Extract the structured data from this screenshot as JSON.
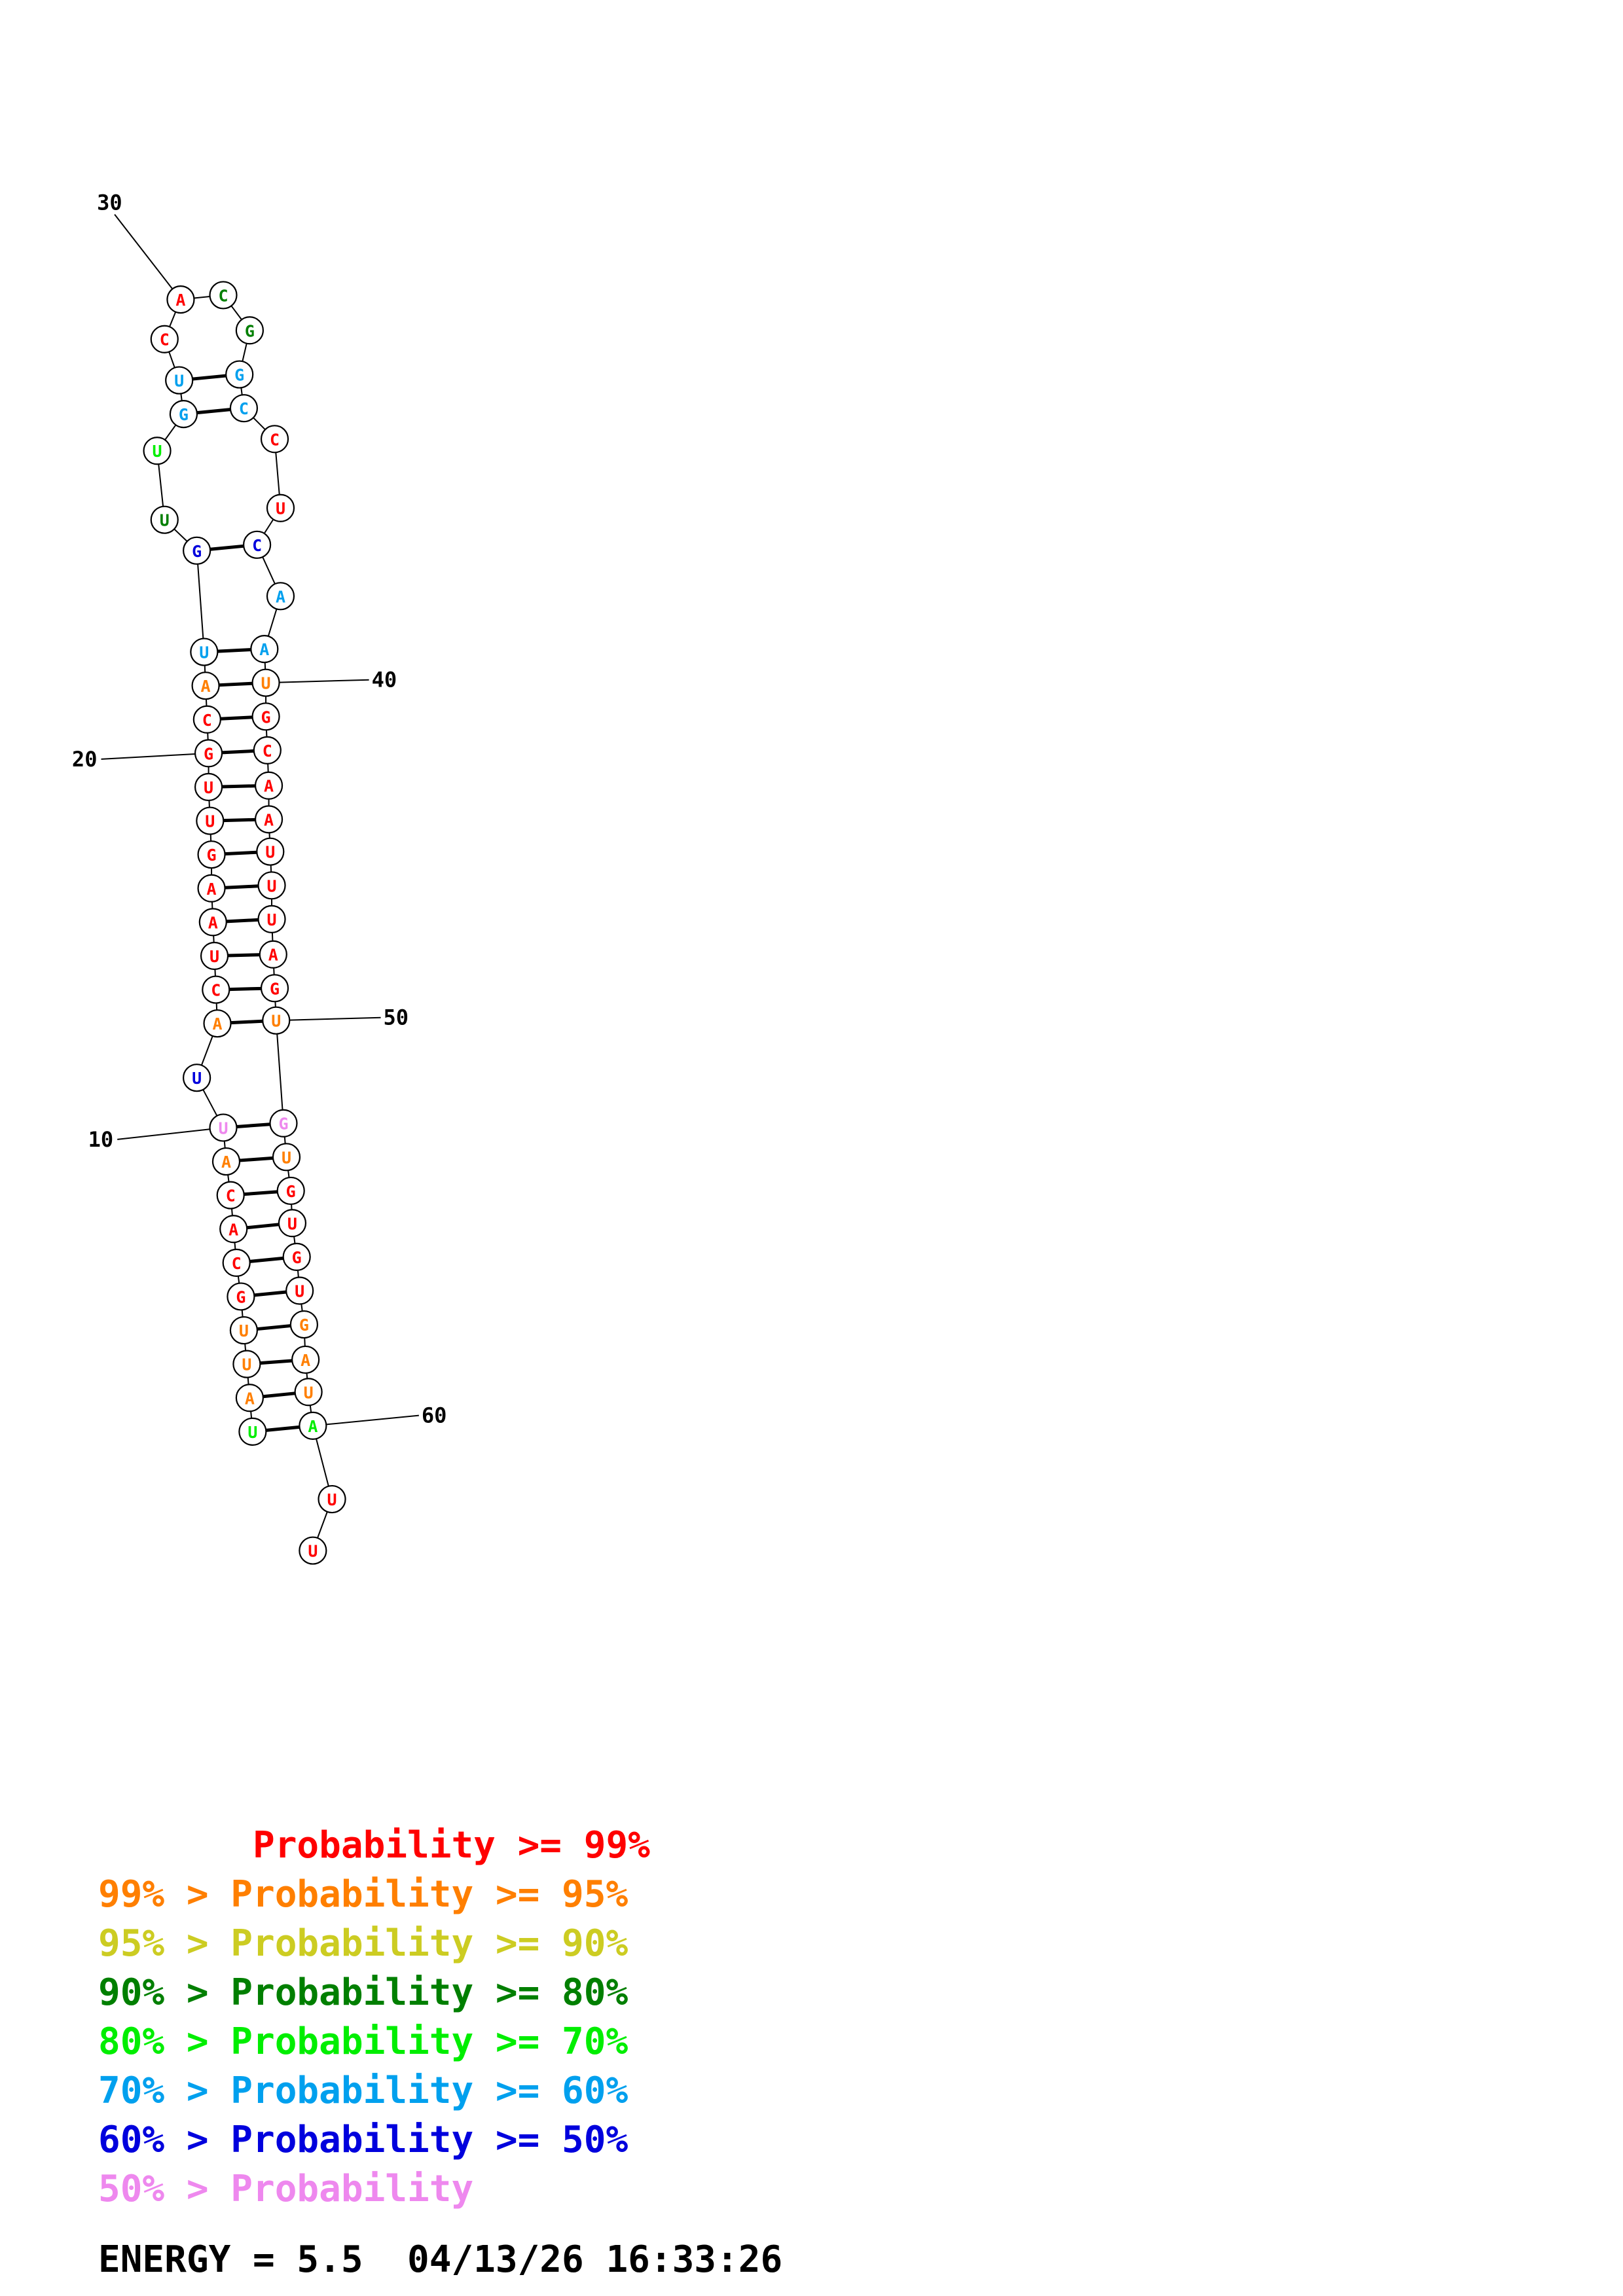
{
  "colors": {
    "r": "#ff0000",
    "o": "#ff7f00",
    "y": "#cccc22",
    "dg": "#007f00",
    "g": "#00ee00",
    "c": "#00a0ee",
    "b": "#0000dd",
    "p": "#ee88ee"
  },
  "nucleotides": [
    {
      "n": 1,
      "base": "U",
      "cls": "g"
    },
    {
      "n": 2,
      "base": "A",
      "cls": "o"
    },
    {
      "n": 3,
      "base": "U",
      "cls": "o"
    },
    {
      "n": 4,
      "base": "U",
      "cls": "o"
    },
    {
      "n": 5,
      "base": "G",
      "cls": "r"
    },
    {
      "n": 6,
      "base": "C",
      "cls": "r"
    },
    {
      "n": 7,
      "base": "A",
      "cls": "r"
    },
    {
      "n": 8,
      "base": "C",
      "cls": "r"
    },
    {
      "n": 9,
      "base": "A",
      "cls": "o"
    },
    {
      "n": 10,
      "base": "U",
      "cls": "p"
    },
    {
      "n": 11,
      "base": "U",
      "cls": "b"
    },
    {
      "n": 12,
      "base": "A",
      "cls": "o"
    },
    {
      "n": 13,
      "base": "C",
      "cls": "r"
    },
    {
      "n": 14,
      "base": "U",
      "cls": "r"
    },
    {
      "n": 15,
      "base": "A",
      "cls": "r"
    },
    {
      "n": 16,
      "base": "A",
      "cls": "r"
    },
    {
      "n": 17,
      "base": "G",
      "cls": "r"
    },
    {
      "n": 18,
      "base": "U",
      "cls": "r"
    },
    {
      "n": 19,
      "base": "U",
      "cls": "r"
    },
    {
      "n": 20,
      "base": "G",
      "cls": "r"
    },
    {
      "n": 21,
      "base": "C",
      "cls": "r"
    },
    {
      "n": 22,
      "base": "A",
      "cls": "o"
    },
    {
      "n": 23,
      "base": "U",
      "cls": "c"
    },
    {
      "n": 24,
      "base": "G",
      "cls": "b"
    },
    {
      "n": 25,
      "base": "U",
      "cls": "dg"
    },
    {
      "n": 26,
      "base": "U",
      "cls": "g"
    },
    {
      "n": 27,
      "base": "G",
      "cls": "c"
    },
    {
      "n": 28,
      "base": "U",
      "cls": "c"
    },
    {
      "n": 29,
      "base": "C",
      "cls": "r"
    },
    {
      "n": 30,
      "base": "A",
      "cls": "r"
    },
    {
      "n": 31,
      "base": "C",
      "cls": "dg"
    },
    {
      "n": 32,
      "base": "G",
      "cls": "dg"
    },
    {
      "n": 33,
      "base": "G",
      "cls": "c"
    },
    {
      "n": 34,
      "base": "C",
      "cls": "c"
    },
    {
      "n": 35,
      "base": "C",
      "cls": "r"
    },
    {
      "n": 36,
      "base": "U",
      "cls": "r"
    },
    {
      "n": 37,
      "base": "C",
      "cls": "b"
    },
    {
      "n": 38,
      "base": "A",
      "cls": "c"
    },
    {
      "n": 39,
      "base": "A",
      "cls": "c"
    },
    {
      "n": 40,
      "base": "U",
      "cls": "o"
    },
    {
      "n": 41,
      "base": "G",
      "cls": "r"
    },
    {
      "n": 42,
      "base": "C",
      "cls": "r"
    },
    {
      "n": 43,
      "base": "A",
      "cls": "r"
    },
    {
      "n": 44,
      "base": "A",
      "cls": "r"
    },
    {
      "n": 45,
      "base": "U",
      "cls": "r"
    },
    {
      "n": 46,
      "base": "U",
      "cls": "r"
    },
    {
      "n": 47,
      "base": "U",
      "cls": "r"
    },
    {
      "n": 48,
      "base": "A",
      "cls": "r"
    },
    {
      "n": 49,
      "base": "G",
      "cls": "r"
    },
    {
      "n": 50,
      "base": "U",
      "cls": "o"
    },
    {
      "n": 51,
      "base": "G",
      "cls": "p"
    },
    {
      "n": 52,
      "base": "U",
      "cls": "o"
    },
    {
      "n": 53,
      "base": "G",
      "cls": "r"
    },
    {
      "n": 54,
      "base": "U",
      "cls": "r"
    },
    {
      "n": 55,
      "base": "G",
      "cls": "r"
    },
    {
      "n": 56,
      "base": "U",
      "cls": "r"
    },
    {
      "n": 57,
      "base": "G",
      "cls": "o"
    },
    {
      "n": 58,
      "base": "A",
      "cls": "o"
    },
    {
      "n": 59,
      "base": "U",
      "cls": "o"
    },
    {
      "n": 60,
      "base": "A",
      "cls": "g"
    },
    {
      "n": 61,
      "base": "U",
      "cls": "r"
    },
    {
      "n": 62,
      "base": "U",
      "cls": "r"
    }
  ],
  "pairs": [
    [
      1,
      60
    ],
    [
      2,
      59
    ],
    [
      3,
      58
    ],
    [
      4,
      57
    ],
    [
      5,
      56
    ],
    [
      6,
      55
    ],
    [
      7,
      54
    ],
    [
      8,
      53
    ],
    [
      9,
      52
    ],
    [
      10,
      51
    ],
    [
      12,
      50
    ],
    [
      13,
      49
    ],
    [
      14,
      48
    ],
    [
      15,
      47
    ],
    [
      16,
      46
    ],
    [
      17,
      45
    ],
    [
      18,
      44
    ],
    [
      19,
      43
    ],
    [
      20,
      42
    ],
    [
      21,
      41
    ],
    [
      22,
      40
    ],
    [
      23,
      39
    ],
    [
      24,
      37
    ],
    [
      27,
      34
    ],
    [
      28,
      33
    ]
  ],
  "number_labels": [
    {
      "text": "10",
      "n": 10
    },
    {
      "text": "20",
      "n": 20
    },
    {
      "text": "30",
      "n": 30
    },
    {
      "text": "40",
      "n": 40
    },
    {
      "text": "50",
      "n": 50
    },
    {
      "text": "60",
      "n": 60
    }
  ],
  "legend": [
    {
      "text": "       Probability >= 99%",
      "cls": "r"
    },
    {
      "text": "99% > Probability >= 95%",
      "cls": "o"
    },
    {
      "text": "95% > Probability >= 90%",
      "cls": "y"
    },
    {
      "text": "90% > Probability >= 80%",
      "cls": "dg"
    },
    {
      "text": "80% > Probability >= 70%",
      "cls": "g"
    },
    {
      "text": "70% > Probability >= 60%",
      "cls": "c"
    },
    {
      "text": "60% > Probability >= 50%",
      "cls": "b"
    },
    {
      "text": "50% > Probability",
      "cls": "p"
    }
  ],
  "energy": "ENERGY = 5.5  04/13/26 16:33:26"
}
